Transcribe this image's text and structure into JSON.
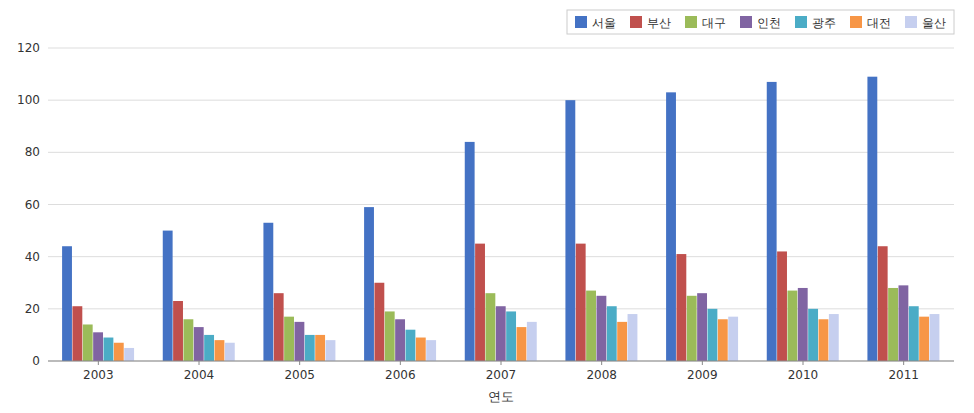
{
  "chart_data": {
    "type": "bar",
    "xlabel": "연도",
    "categories": [
      "2003",
      "2004",
      "2005",
      "2006",
      "2007",
      "2008",
      "2009",
      "2010",
      "2011"
    ],
    "series": [
      {
        "name": "서울",
        "color": "#4472C4",
        "values": [
          44,
          50,
          53,
          59,
          84,
          100,
          103,
          107,
          109
        ]
      },
      {
        "name": "부산",
        "color": "#C0504D",
        "values": [
          21,
          23,
          26,
          30,
          45,
          45,
          41,
          42,
          44
        ]
      },
      {
        "name": "대구",
        "color": "#9BBB59",
        "values": [
          14,
          16,
          17,
          19,
          26,
          27,
          25,
          27,
          28
        ]
      },
      {
        "name": "인천",
        "color": "#8064A2",
        "values": [
          11,
          13,
          15,
          16,
          21,
          25,
          26,
          28,
          29
        ]
      },
      {
        "name": "광주",
        "color": "#4BACC6",
        "values": [
          9,
          10,
          10,
          12,
          19,
          21,
          20,
          20,
          21
        ]
      },
      {
        "name": "대전",
        "color": "#F79646",
        "values": [
          7,
          8,
          10,
          9,
          13,
          15,
          16,
          16,
          17
        ]
      },
      {
        "name": "울산",
        "color": "#C6CFEF",
        "values": [
          5,
          7,
          8,
          8,
          15,
          18,
          17,
          18,
          18
        ]
      }
    ],
    "ylim": [
      0,
      120
    ],
    "yticks": [
      0,
      20,
      40,
      60,
      80,
      100,
      120
    ],
    "grid": true,
    "legend": "upper right"
  }
}
